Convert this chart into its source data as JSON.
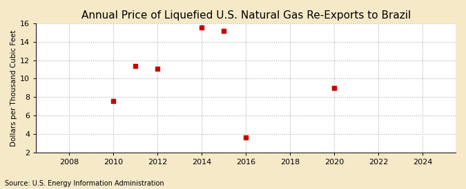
{
  "title": "Annual Price of Liquefied U.S. Natural Gas Re-Exports to Brazil",
  "ylabel": "Dollars per Thousand Cubic Feet",
  "source": "Source: U.S. Energy Information Administration",
  "outer_bg_color": "#f5e9c8",
  "plot_bg_color": "#ffffff",
  "data_x": [
    2010,
    2011,
    2012,
    2014,
    2015,
    2016,
    2020
  ],
  "data_y": [
    7.55,
    11.4,
    11.1,
    15.55,
    15.2,
    3.65,
    9.0
  ],
  "marker_color": "#cc0000",
  "marker": "s",
  "marker_size": 4,
  "xlim": [
    2006.5,
    2025.5
  ],
  "ylim": [
    2,
    16
  ],
  "yticks": [
    2,
    4,
    6,
    8,
    10,
    12,
    14,
    16
  ],
  "xticks": [
    2008,
    2010,
    2012,
    2014,
    2016,
    2018,
    2020,
    2022,
    2024
  ],
  "grid_color": "#aaaaaa",
  "grid_style": ":",
  "title_fontsize": 11,
  "label_fontsize": 7.5,
  "tick_fontsize": 8,
  "source_fontsize": 7
}
